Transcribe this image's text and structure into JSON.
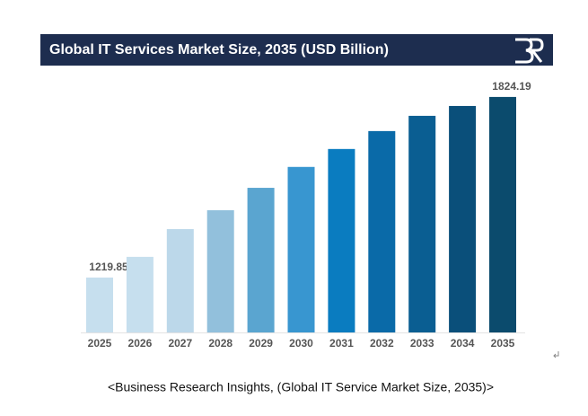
{
  "chart_data": {
    "type": "bar",
    "title": "Global IT Services Market Size, 2035 (USD Billion)",
    "caption": "<Business Research Insights, (Global IT Service Market Size, 2035)>",
    "categories": [
      "2025",
      "2026",
      "2027",
      "2028",
      "2029",
      "2030",
      "2031",
      "2032",
      "2033",
      "2034",
      "2035"
    ],
    "values": [
      1219.85,
      1289,
      1382,
      1445,
      1520,
      1590,
      1650,
      1710,
      1761,
      1794,
      1824.19
    ],
    "colors": [
      "#c6dfee",
      "#c6dfee",
      "#bcd8ea",
      "#92c0dc",
      "#5aa5d0",
      "#3896d0",
      "#0a7cc0",
      "#0a6aa8",
      "#0a5e92",
      "#0a4f7a",
      "#0b4b6d"
    ],
    "ylim": [
      1036,
      1860
    ],
    "data_labels": "first-last"
  }
}
